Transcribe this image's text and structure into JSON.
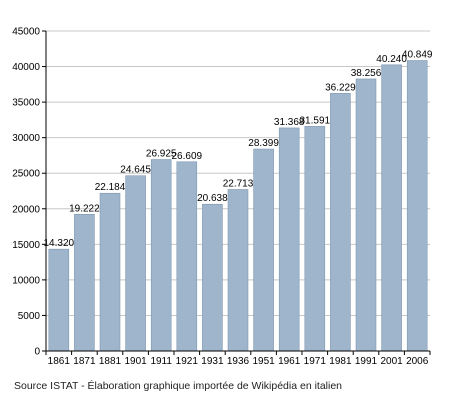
{
  "chart_data": {
    "type": "bar",
    "categories": [
      "1861",
      "1871",
      "1881",
      "1901",
      "1911",
      "1921",
      "1931",
      "1936",
      "1951",
      "1961",
      "1971",
      "1981",
      "1991",
      "2001",
      "2006"
    ],
    "values": [
      14320,
      19222,
      22184,
      24645,
      26925,
      26609,
      20638,
      22713,
      28399,
      31368,
      31591,
      36229,
      38256,
      40240,
      40849
    ],
    "data_labels": [
      "14.320",
      "19.222",
      "22.184",
      "24.645",
      "26.925",
      "26.609",
      "20.638",
      "22.713",
      "28.399",
      "31.368",
      "31.591",
      "36.229",
      "38.256",
      "40.240",
      "40.849"
    ],
    "y_ticks": [
      0,
      5000,
      10000,
      15000,
      20000,
      25000,
      30000,
      35000,
      40000,
      45000
    ],
    "ylim": [
      0,
      45000
    ],
    "grid": true,
    "legend": "none",
    "bar_color": "#9fb5cc",
    "bar_edge_color": "#7f97b0",
    "axis_color": "#000000",
    "grid_color": "#c8c8c8"
  },
  "caption": "Source ISTAT - Élaboration graphique importée de Wikipédia en italien"
}
